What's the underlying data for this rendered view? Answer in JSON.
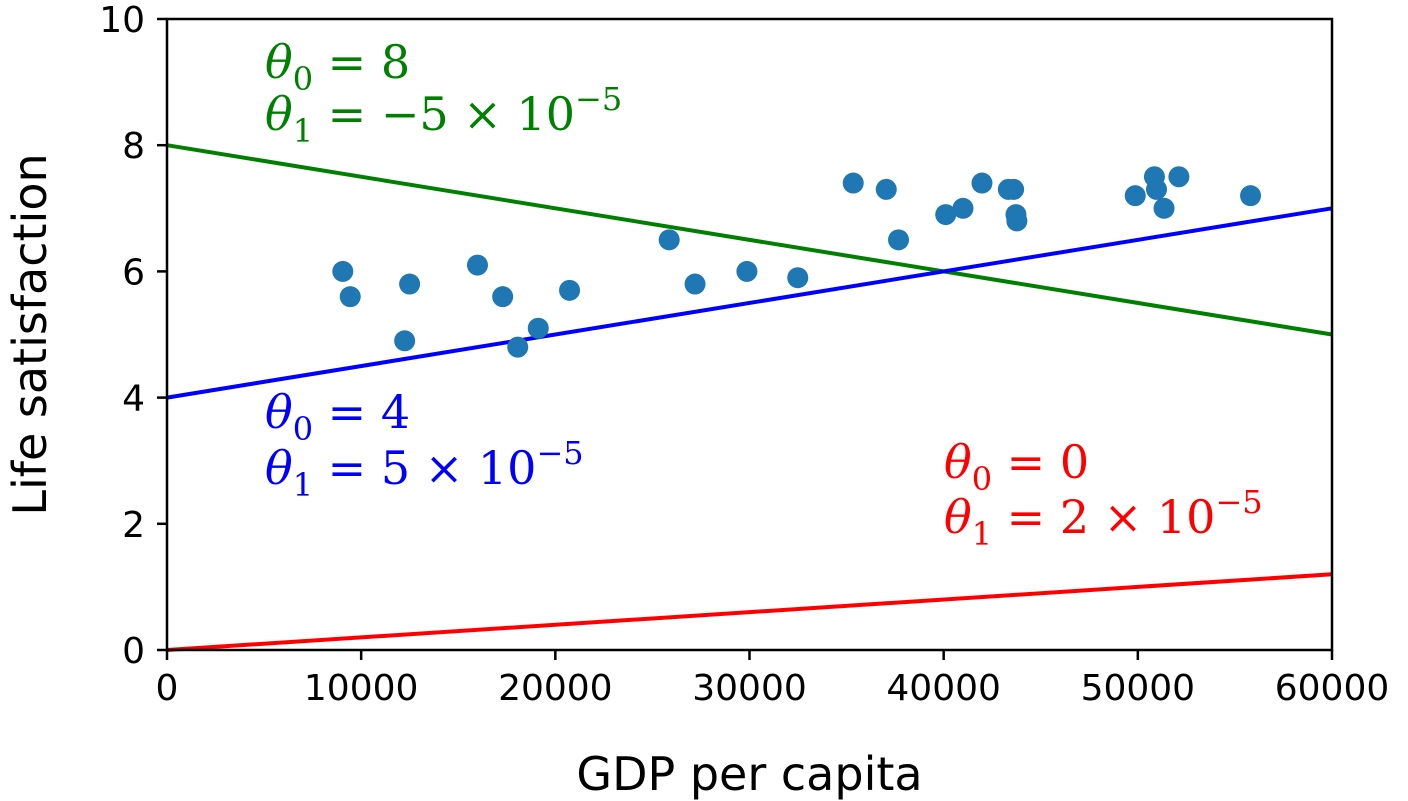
{
  "chart_data": {
    "type": "scatter",
    "title": "",
    "xlabel": "GDP per capita",
    "ylabel": "Life satisfaction",
    "xlim": [
      0,
      60000
    ],
    "ylim": [
      0,
      10
    ],
    "xticks": [
      0,
      10000,
      20000,
      30000,
      40000,
      50000,
      60000
    ],
    "yticks": [
      0,
      2,
      4,
      6,
      8,
      10
    ],
    "xtick_labels": [
      "0",
      "10000",
      "20000",
      "30000",
      "40000",
      "50000",
      "60000"
    ],
    "ytick_labels": [
      "0",
      "2",
      "4",
      "6",
      "8",
      "10"
    ],
    "grid": false,
    "colors": {
      "points": "#1f77b4",
      "green": "#008000",
      "blue": "#0000ff",
      "red": "#ff0000"
    },
    "points": [
      {
        "x": 9054,
        "y": 6.0
      },
      {
        "x": 9437,
        "y": 5.6
      },
      {
        "x": 12240,
        "y": 4.9
      },
      {
        "x": 12495,
        "y": 5.8
      },
      {
        "x": 15991,
        "y": 6.1
      },
      {
        "x": 17288,
        "y": 5.6
      },
      {
        "x": 18064,
        "y": 4.8
      },
      {
        "x": 19121,
        "y": 5.1
      },
      {
        "x": 20732,
        "y": 5.7
      },
      {
        "x": 25864,
        "y": 6.5
      },
      {
        "x": 27195,
        "y": 5.8
      },
      {
        "x": 29866,
        "y": 6.0
      },
      {
        "x": 32485,
        "y": 5.9
      },
      {
        "x": 35343,
        "y": 7.4
      },
      {
        "x": 37044,
        "y": 7.3
      },
      {
        "x": 37675,
        "y": 6.5
      },
      {
        "x": 40106,
        "y": 6.9
      },
      {
        "x": 40996,
        "y": 7.0
      },
      {
        "x": 41973,
        "y": 7.4
      },
      {
        "x": 43331,
        "y": 7.3
      },
      {
        "x": 43603,
        "y": 7.3
      },
      {
        "x": 43724,
        "y": 6.9
      },
      {
        "x": 43770,
        "y": 6.8
      },
      {
        "x": 49866,
        "y": 7.2
      },
      {
        "x": 50854,
        "y": 7.5
      },
      {
        "x": 50962,
        "y": 7.3
      },
      {
        "x": 51350,
        "y": 7.0
      },
      {
        "x": 52114,
        "y": 7.5
      },
      {
        "x": 55805,
        "y": 7.2
      }
    ],
    "lines": [
      {
        "color": "#008000",
        "theta0": 8,
        "theta1": -5e-05,
        "eq0": "θ0 = 8",
        "eq1": "θ1 = −5 × 10−5"
      },
      {
        "color": "#0000ff",
        "theta0": 4,
        "theta1": 5e-05,
        "eq0": "θ0 = 4",
        "eq1": "θ1 = 5 × 10−5"
      },
      {
        "color": "#ff0000",
        "theta0": 0,
        "theta1": 2e-05,
        "eq0": "θ0 = 0",
        "eq1": "θ1 = 2 × 10−5"
      }
    ],
    "annotations": {
      "green": {
        "theta0": {
          "sym": "θ",
          "sub": "0",
          "rest": " = 8"
        },
        "theta1": {
          "sym": "θ",
          "sub": "1",
          "rest": " = ",
          "mant": "−5 × 10",
          "exp": "−5"
        }
      },
      "blue": {
        "theta0": {
          "sym": "θ",
          "sub": "0",
          "rest": " = 4"
        },
        "theta1": {
          "sym": "θ",
          "sub": "1",
          "rest": " = ",
          "mant": "5 × 10",
          "exp": "−5"
        }
      },
      "red": {
        "theta0": {
          "sym": "θ",
          "sub": "0",
          "rest": " = 0"
        },
        "theta1": {
          "sym": "θ",
          "sub": "1",
          "rest": " = ",
          "mant": "2 × 10",
          "exp": "−5"
        }
      }
    }
  }
}
